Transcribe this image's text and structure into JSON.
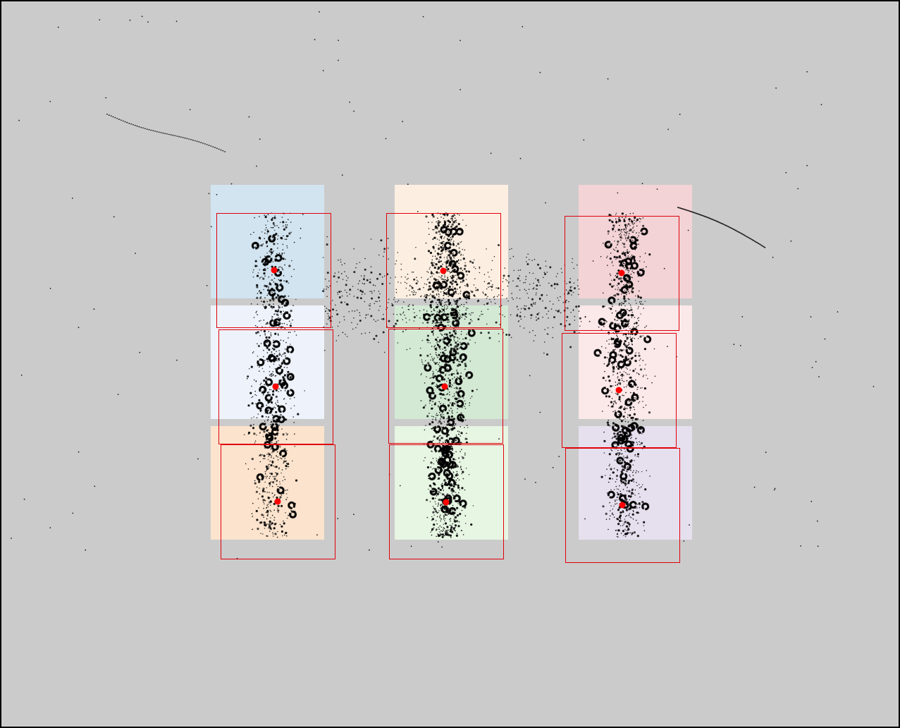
{
  "canvas": {
    "background_color": "#cbcbcb",
    "border_color": "#000000"
  },
  "colors": {
    "marker": "#ff0000",
    "box_outline": "#e0000a",
    "scatter": "#000000"
  },
  "grid": {
    "columns": 3,
    "rows": 3,
    "cells": [
      {
        "id": "r1c1",
        "row": 1,
        "col": 1,
        "fill": "#d2e4f0"
      },
      {
        "id": "r1c2",
        "row": 1,
        "col": 2,
        "fill": "#fcefe1"
      },
      {
        "id": "r1c3",
        "row": 1,
        "col": 3,
        "fill": "#f3d3d6"
      },
      {
        "id": "r2c1",
        "row": 2,
        "col": 1,
        "fill": "#eef3fb"
      },
      {
        "id": "r2c2",
        "row": 2,
        "col": 2,
        "fill": "#d3e9d4"
      },
      {
        "id": "r2c3",
        "row": 2,
        "col": 3,
        "fill": "#fbe8e9"
      },
      {
        "id": "r3c1",
        "row": 3,
        "col": 1,
        "fill": "#fbe3cd"
      },
      {
        "id": "r3c2",
        "row": 3,
        "col": 2,
        "fill": "#e7f5e3"
      },
      {
        "id": "r3c3",
        "row": 3,
        "col": 3,
        "fill": "#e6dfee"
      }
    ]
  }
}
